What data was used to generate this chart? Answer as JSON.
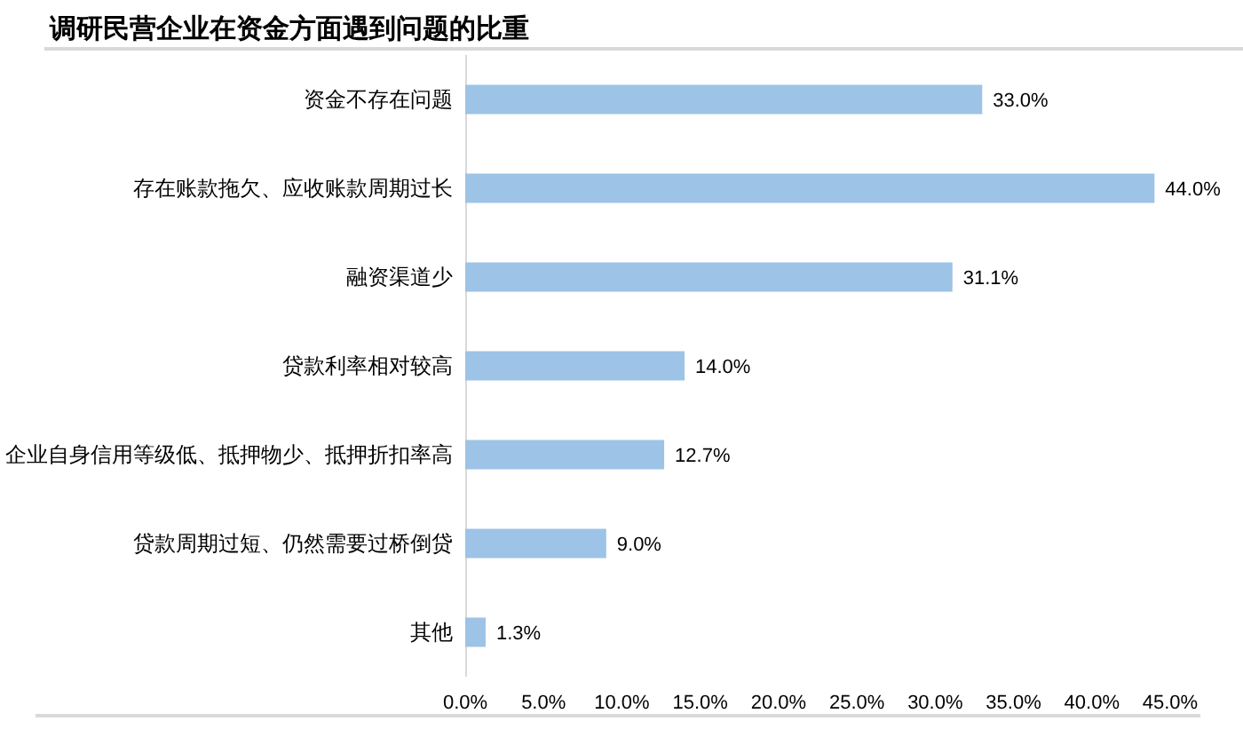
{
  "chart_data": {
    "type": "bar",
    "orientation": "horizontal",
    "title": "调研民营企业在资金方面遇到问题的比重",
    "categories": [
      "资金不存在问题",
      "存在账款拖欠、应收账款周期过长",
      "融资渠道少",
      "贷款利率相对较高",
      "企业自身信用等级低、抵押物少、抵押折扣率高",
      "贷款周期过短、仍然需要过桥倒贷",
      "其他"
    ],
    "values": [
      33.0,
      44.0,
      31.1,
      14.0,
      12.7,
      9.0,
      1.3
    ],
    "value_labels": [
      "33.0%",
      "44.0%",
      "31.1%",
      "14.0%",
      "12.7%",
      "9.0%",
      "1.3%"
    ],
    "color": "#9dc3e6",
    "xlim": [
      0,
      45
    ],
    "xticks": [
      {
        "value": 0,
        "label": "0.0%"
      },
      {
        "value": 5,
        "label": "5.0%"
      },
      {
        "value": 10,
        "label": "10.0%"
      },
      {
        "value": 15,
        "label": "15.0%"
      },
      {
        "value": 20,
        "label": "20.0%"
      },
      {
        "value": 25,
        "label": "25.0%"
      },
      {
        "value": 30,
        "label": "30.0%"
      },
      {
        "value": 35,
        "label": "35.0%"
      },
      {
        "value": 40,
        "label": "40.0%"
      },
      {
        "value": 45,
        "label": "45.0%"
      }
    ]
  }
}
